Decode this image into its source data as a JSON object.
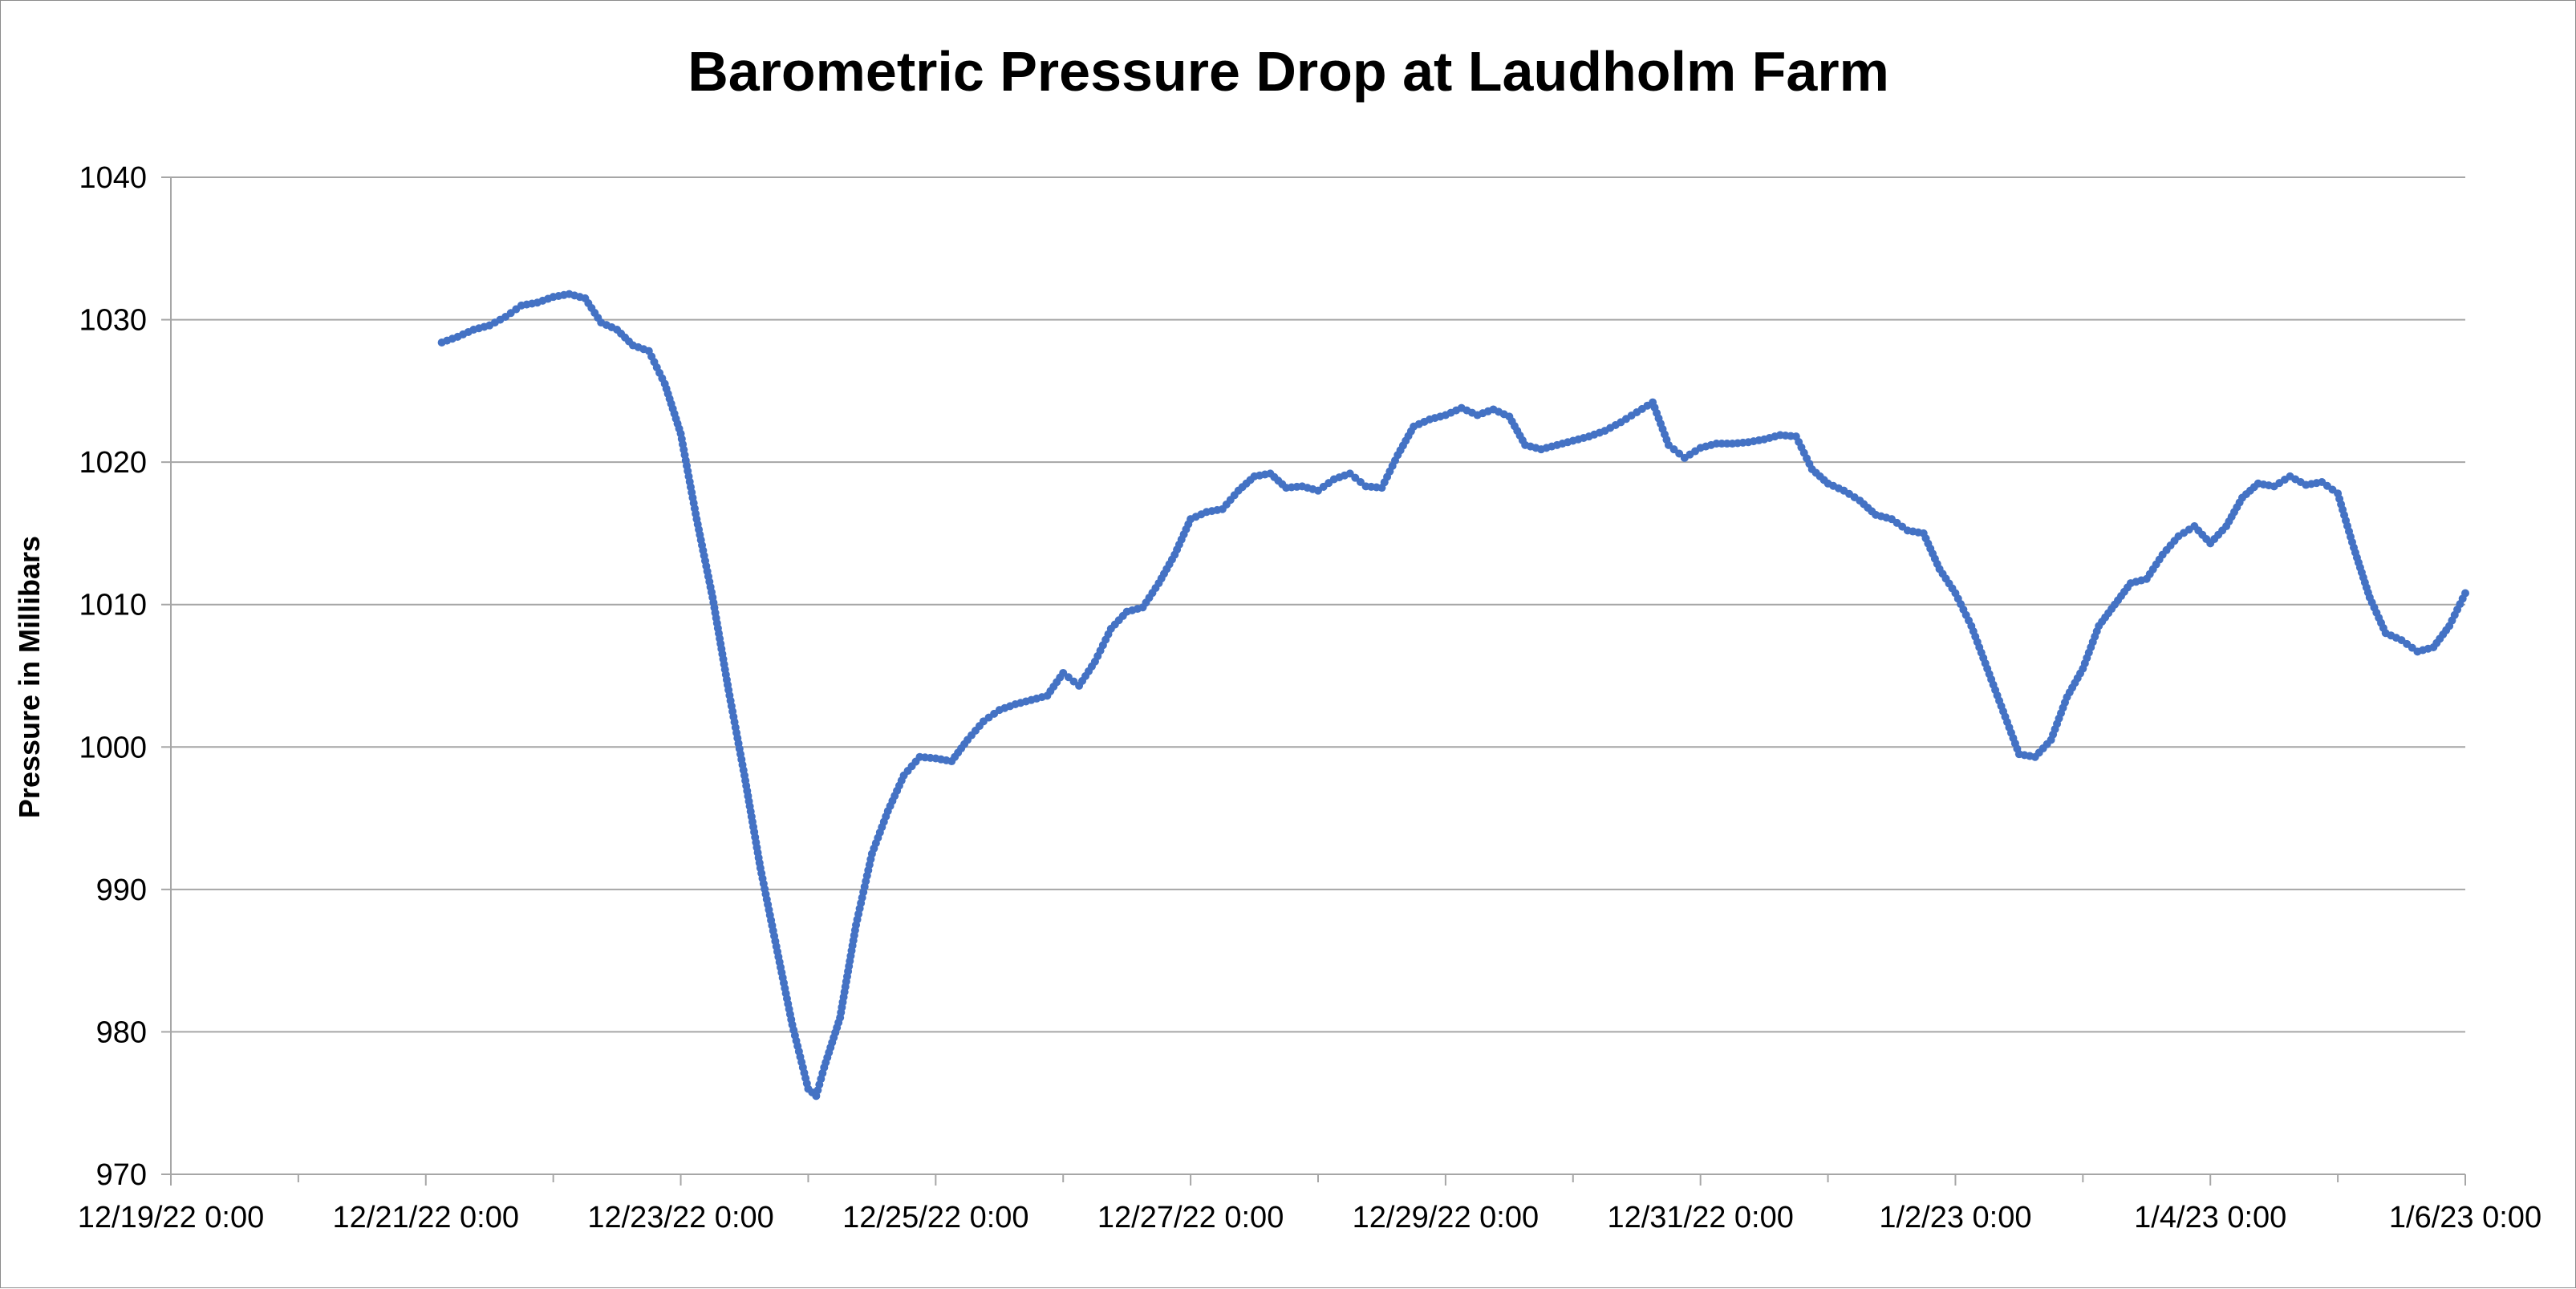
{
  "chart_data": {
    "type": "scatter",
    "title": "Barometric Pressure Drop at Laudholm Farm",
    "xlabel": "",
    "ylabel": "Pressure in Millibars",
    "ylim": [
      970,
      1040
    ],
    "xlim": [
      "12/19/22 0:00",
      "1/6/23 0:00"
    ],
    "y_ticks": [
      "970",
      "980",
      "990",
      "1000",
      "1010",
      "1020",
      "1030",
      "1040"
    ],
    "x_ticks": [
      "12/19/22 0:00",
      "12/21/22 0:00",
      "12/23/22 0:00",
      "12/25/22 0:00",
      "12/27/22 0:00",
      "12/29/22 0:00",
      "12/31/22 0:00",
      "1/2/23 0:00",
      "1/4/23 0:00",
      "1/6/23 0:00"
    ],
    "grid": "horizontal",
    "legend": "none",
    "marker_color": "#4472C4",
    "series": [
      {
        "points": [
          [
            "12/21/22 3:00",
            1028.4
          ],
          [
            "12/21/22 6:00",
            1028.8
          ],
          [
            "12/21/22 9:00",
            1029.3
          ],
          [
            "12/21/22 12:00",
            1029.6
          ],
          [
            "12/21/22 15:00",
            1030.2
          ],
          [
            "12/21/22 18:00",
            1031.0
          ],
          [
            "12/21/22 21:00",
            1031.2
          ],
          [
            "12/22/22 0:00",
            1031.6
          ],
          [
            "12/22/22 3:00",
            1031.8
          ],
          [
            "12/22/22 6:00",
            1031.5
          ],
          [
            "12/22/22 9:00",
            1029.8
          ],
          [
            "12/22/22 12:00",
            1029.3
          ],
          [
            "12/22/22 15:00",
            1028.2
          ],
          [
            "12/22/22 18:00",
            1027.8
          ],
          [
            "12/22/22 21:00",
            1025.5
          ],
          [
            "12/23/22 0:00",
            1022.0
          ],
          [
            "12/23/22 3:00",
            1016.0
          ],
          [
            "12/23/22 6:00",
            1010.5
          ],
          [
            "12/23/22 9:00",
            1004.0
          ],
          [
            "12/23/22 12:00",
            998.0
          ],
          [
            "12/23/22 15:00",
            991.5
          ],
          [
            "12/23/22 18:00",
            986.0
          ],
          [
            "12/23/22 21:00",
            980.5
          ],
          [
            "12/24/22 0:00",
            976.0
          ],
          [
            "12/24/22 1:30",
            975.5
          ],
          [
            "12/24/22 3:00",
            977.5
          ],
          [
            "12/24/22 6:00",
            981.0
          ],
          [
            "12/24/22 9:00",
            987.5
          ],
          [
            "12/24/22 12:00",
            992.5
          ],
          [
            "12/24/22 15:00",
            995.5
          ],
          [
            "12/24/22 18:00",
            998.0
          ],
          [
            "12/24/22 21:00",
            999.3
          ],
          [
            "12/25/22 0:00",
            999.2
          ],
          [
            "12/25/22 3:00",
            999.0
          ],
          [
            "12/25/22 6:00",
            1000.5
          ],
          [
            "12/25/22 9:00",
            1001.8
          ],
          [
            "12/25/22 12:00",
            1002.6
          ],
          [
            "12/25/22 15:00",
            1003.0
          ],
          [
            "12/25/22 18:00",
            1003.3
          ],
          [
            "12/25/22 21:00",
            1003.6
          ],
          [
            "12/26/22 0:00",
            1005.2
          ],
          [
            "12/26/22 3:00",
            1004.3
          ],
          [
            "12/26/22 6:00",
            1006.0
          ],
          [
            "12/26/22 9:00",
            1008.3
          ],
          [
            "12/26/22 12:00",
            1009.5
          ],
          [
            "12/26/22 15:00",
            1009.8
          ],
          [
            "12/26/22 18:00",
            1011.5
          ],
          [
            "12/26/22 21:00",
            1013.5
          ],
          [
            "12/27/22 0:00",
            1016.0
          ],
          [
            "12/27/22 3:00",
            1016.5
          ],
          [
            "12/27/22 6:00",
            1016.7
          ],
          [
            "12/27/22 9:00",
            1018.0
          ],
          [
            "12/27/22 12:00",
            1019.0
          ],
          [
            "12/27/22 15:00",
            1019.2
          ],
          [
            "12/27/22 18:00",
            1018.2
          ],
          [
            "12/27/22 21:00",
            1018.3
          ],
          [
            "12/28/22 0:00",
            1018.0
          ],
          [
            "12/28/22 3:00",
            1018.8
          ],
          [
            "12/28/22 6:00",
            1019.2
          ],
          [
            "12/28/22 9:00",
            1018.3
          ],
          [
            "12/28/22 12:00",
            1018.2
          ],
          [
            "12/28/22 15:00",
            1020.5
          ],
          [
            "12/28/22 18:00",
            1022.5
          ],
          [
            "12/28/22 21:00",
            1023.0
          ],
          [
            "12/29/22 0:00",
            1023.3
          ],
          [
            "12/29/22 3:00",
            1023.8
          ],
          [
            "12/29/22 6:00",
            1023.3
          ],
          [
            "12/29/22 9:00",
            1023.7
          ],
          [
            "12/29/22 12:00",
            1023.2
          ],
          [
            "12/29/22 15:00",
            1021.2
          ],
          [
            "12/29/22 18:00",
            1020.9
          ],
          [
            "12/29/22 21:00",
            1021.2
          ],
          [
            "12/30/22 0:00",
            1021.5
          ],
          [
            "12/30/22 3:00",
            1021.8
          ],
          [
            "12/30/22 6:00",
            1022.2
          ],
          [
            "12/30/22 9:00",
            1022.8
          ],
          [
            "12/30/22 12:00",
            1023.5
          ],
          [
            "12/30/22 15:00",
            1024.2
          ],
          [
            "12/30/22 18:00",
            1021.2
          ],
          [
            "12/30/22 21:00",
            1020.3
          ],
          [
            "12/31/22 0:00",
            1021.0
          ],
          [
            "12/31/22 3:00",
            1021.3
          ],
          [
            "12/31/22 6:00",
            1021.3
          ],
          [
            "12/31/22 9:00",
            1021.4
          ],
          [
            "12/31/22 12:00",
            1021.6
          ],
          [
            "12/31/22 15:00",
            1021.9
          ],
          [
            "12/31/22 18:00",
            1021.8
          ],
          [
            "12/31/22 21:00",
            1019.5
          ],
          [
            "1/1/23 0:00",
            1018.5
          ],
          [
            "1/1/23 3:00",
            1018.0
          ],
          [
            "1/1/23 6:00",
            1017.3
          ],
          [
            "1/1/23 9:00",
            1016.3
          ],
          [
            "1/1/23 12:00",
            1016.0
          ],
          [
            "1/1/23 15:00",
            1015.2
          ],
          [
            "1/1/23 18:00",
            1015.0
          ],
          [
            "1/1/23 21:00",
            1012.5
          ],
          [
            "1/2/23 0:00",
            1010.8
          ],
          [
            "1/2/23 3:00",
            1008.5
          ],
          [
            "1/2/23 6:00",
            1005.5
          ],
          [
            "1/2/23 9:00",
            1002.5
          ],
          [
            "1/2/23 12:00",
            999.5
          ],
          [
            "1/2/23 15:00",
            999.3
          ],
          [
            "1/2/23 18:00",
            1000.5
          ],
          [
            "1/2/23 21:00",
            1003.5
          ],
          [
            "1/3/23 0:00",
            1005.5
          ],
          [
            "1/3/23 3:00",
            1008.5
          ],
          [
            "1/3/23 6:00",
            1010.0
          ],
          [
            "1/3/23 9:00",
            1011.5
          ],
          [
            "1/3/23 12:00",
            1011.8
          ],
          [
            "1/3/23 15:00",
            1013.5
          ],
          [
            "1/3/23 18:00",
            1014.8
          ],
          [
            "1/3/23 21:00",
            1015.5
          ],
          [
            "1/4/23 0:00",
            1014.3
          ],
          [
            "1/4/23 3:00",
            1015.5
          ],
          [
            "1/4/23 6:00",
            1017.5
          ],
          [
            "1/4/23 9:00",
            1018.5
          ],
          [
            "1/4/23 12:00",
            1018.3
          ],
          [
            "1/4/23 15:00",
            1019.0
          ],
          [
            "1/4/23 18:00",
            1018.4
          ],
          [
            "1/4/23 21:00",
            1018.6
          ],
          [
            "1/5/23 0:00",
            1017.8
          ],
          [
            "1/5/23 3:00",
            1014.0
          ],
          [
            "1/5/23 6:00",
            1010.5
          ],
          [
            "1/5/23 9:00",
            1008.0
          ],
          [
            "1/5/23 12:00",
            1007.5
          ],
          [
            "1/5/23 15:00",
            1006.7
          ],
          [
            "1/5/23 18:00",
            1007.0
          ],
          [
            "1/5/23 21:00",
            1008.5
          ],
          [
            "1/6/23 0:00",
            1010.8
          ]
        ]
      }
    ]
  }
}
